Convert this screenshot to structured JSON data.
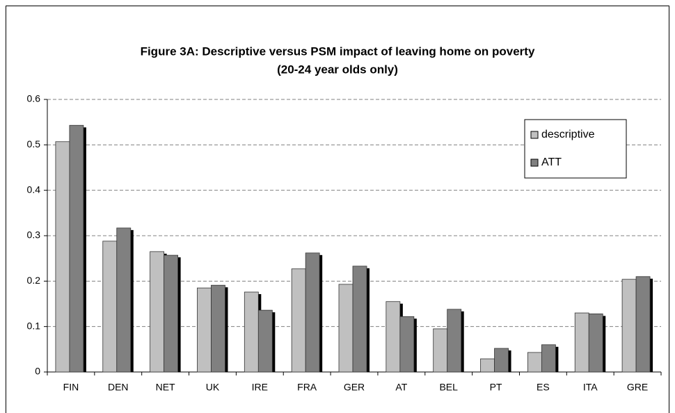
{
  "chart_data": {
    "type": "bar",
    "title": [
      "Figure 3A: Descriptive versus PSM impact of leaving home on poverty",
      "(20-24 year olds only)"
    ],
    "categories": [
      "FIN",
      "DEN",
      "NET",
      "UK",
      "IRE",
      "FRA",
      "GER",
      "AT",
      "BEL",
      "PT",
      "ES",
      "ITA",
      "GRE"
    ],
    "series": [
      {
        "name": "descriptive",
        "color": "#c0c0c0",
        "values": [
          0.507,
          0.288,
          0.265,
          0.185,
          0.176,
          0.227,
          0.193,
          0.155,
          0.095,
          0.029,
          0.043,
          0.13,
          0.204
        ]
      },
      {
        "name": "ATT",
        "color": "#808080",
        "values": [
          0.543,
          0.317,
          0.257,
          0.191,
          0.136,
          0.262,
          0.233,
          0.122,
          0.138,
          0.052,
          0.06,
          0.128,
          0.21
        ]
      }
    ],
    "ylim": [
      0,
      0.6
    ],
    "yticks": [
      0,
      0.1,
      0.2,
      0.3,
      0.4,
      0.5,
      0.6
    ],
    "grid": true,
    "legend": "upper-right"
  }
}
